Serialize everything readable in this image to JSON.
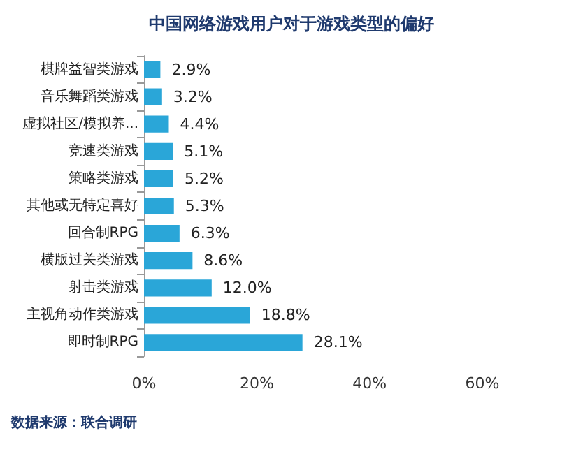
{
  "chart_data": {
    "type": "bar",
    "orientation": "horizontal",
    "title": "中国网络游戏用户对于游戏类型的偏好",
    "categories": [
      "棋牌益智类游戏",
      "音乐舞蹈类游戏",
      "虚拟社区/模拟养...",
      "竞速类游戏",
      "策略类游戏",
      "其他或无特定喜好",
      "回合制RPG",
      "横版过关类游戏",
      "射击类游戏",
      "主视角动作类游戏",
      "即时制RPG"
    ],
    "values": [
      2.9,
      3.2,
      4.4,
      5.1,
      5.2,
      5.3,
      6.3,
      8.6,
      12.0,
      18.8,
      28.1
    ],
    "value_labels": [
      "2.9%",
      "3.2%",
      "4.4%",
      "5.1%",
      "5.2%",
      "5.3%",
      "6.3%",
      "8.6%",
      "12.0%",
      "18.8%",
      "28.1%"
    ],
    "color": "#2aa6d8",
    "xlim": [
      0,
      60
    ],
    "xticks": [
      {
        "value": 0,
        "label": "0%"
      },
      {
        "value": 20,
        "label": "20%"
      },
      {
        "value": 40,
        "label": "40%"
      },
      {
        "value": 60,
        "label": "60%"
      }
    ],
    "grid": false,
    "annotations": [
      "数据来源：联合调研"
    ]
  }
}
